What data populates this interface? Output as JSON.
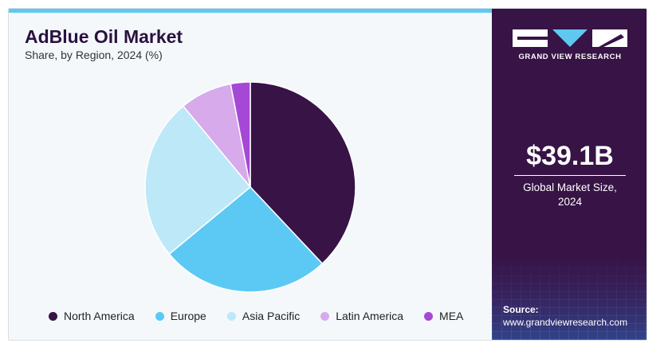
{
  "header": {
    "title": "AdBlue Oil Market",
    "subtitle": "Share, by Region, 2024 (%)"
  },
  "chart_data": {
    "type": "pie",
    "title": "AdBlue Oil Market",
    "subtitle": "Share, by Region, 2024 (%)",
    "categories": [
      "North America",
      "Europe",
      "Asia Pacific",
      "Latin America",
      "MEA"
    ],
    "values": [
      38,
      26,
      25,
      8,
      3
    ],
    "colors": [
      "#371346",
      "#5cc9f5",
      "#bde8f8",
      "#d6aaeb",
      "#a648d6"
    ],
    "legend_position": "bottom"
  },
  "sidebar": {
    "brand": "GRAND VIEW RESEARCH",
    "market_size": "$39.1B",
    "market_label_line1": "Global Market Size,",
    "market_label_line2": "2024",
    "source_label": "Source:",
    "source_url": "www.grandviewresearch.com"
  }
}
